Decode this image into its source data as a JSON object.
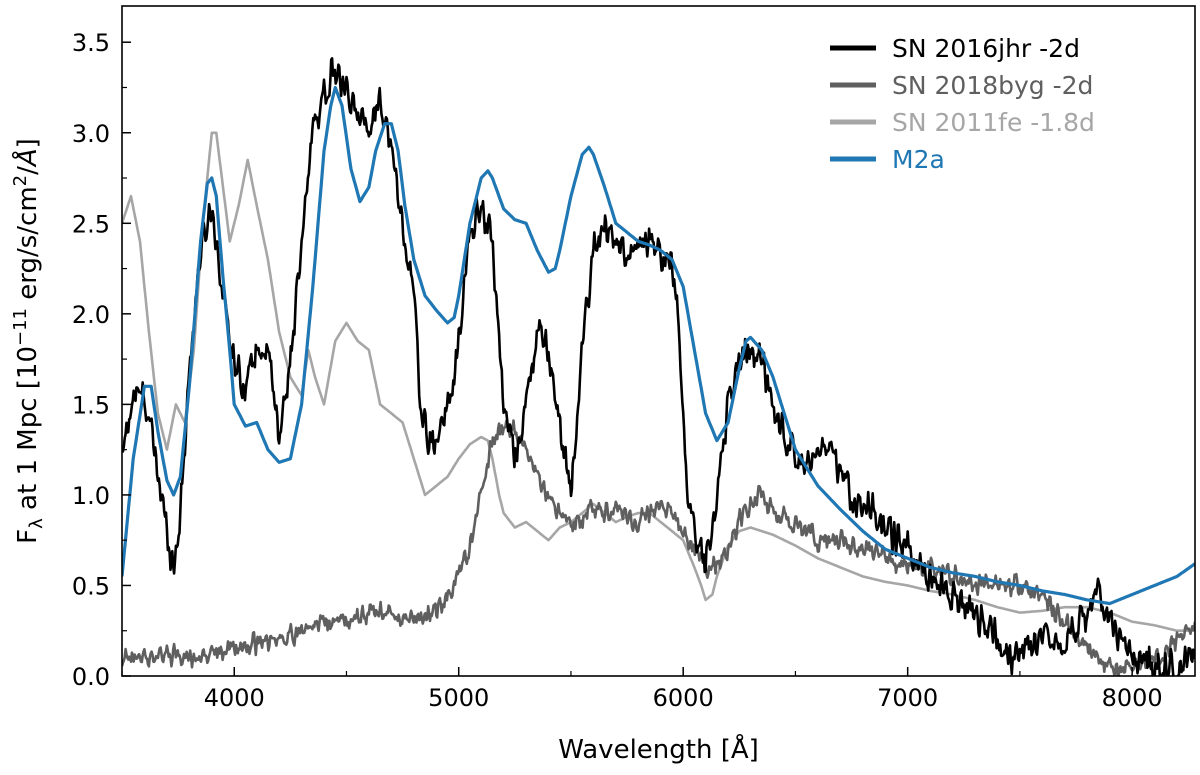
{
  "chart_data": {
    "type": "line",
    "xlabel": "Wavelength [Å]",
    "ylabel_parts": [
      "F",
      "λ",
      " at 1 Mpc [10",
      "−11",
      " erg/s/cm",
      "2",
      "/",
      "Å",
      "]"
    ],
    "xlim": [
      3500,
      8280
    ],
    "ylim": [
      0.0,
      3.7
    ],
    "x_ticks": [
      4000,
      5000,
      6000,
      7000,
      8000
    ],
    "x_tick_labels": [
      "4000",
      "5000",
      "6000",
      "7000",
      "8000"
    ],
    "y_ticks": [
      0.0,
      0.5,
      1.0,
      1.5,
      2.0,
      2.5,
      3.0,
      3.5
    ],
    "y_tick_labels": [
      "0.0",
      "0.5",
      "1.0",
      "1.5",
      "2.0",
      "2.5",
      "3.0",
      "3.5"
    ],
    "grid": false,
    "legend_position": "top-right",
    "series": [
      {
        "name": "SN 2016jhr -2d",
        "color": "#000000",
        "noise": 0.11,
        "x": [
          3500,
          3550,
          3600,
          3650,
          3700,
          3730,
          3760,
          3800,
          3850,
          3900,
          3950,
          4000,
          4050,
          4100,
          4150,
          4200,
          4250,
          4300,
          4350,
          4400,
          4450,
          4500,
          4550,
          4600,
          4650,
          4700,
          4750,
          4800,
          4830,
          4870,
          4900,
          4950,
          4980,
          5050,
          5100,
          5150,
          5200,
          5250,
          5300,
          5350,
          5400,
          5450,
          5500,
          5550,
          5600,
          5650,
          5700,
          5750,
          5800,
          5850,
          5900,
          5950,
          5980,
          6020,
          6050,
          6100,
          6150,
          6200,
          6250,
          6300,
          6350,
          6400,
          6450,
          6500,
          6550,
          6600,
          6650,
          6700,
          6750,
          6800,
          6850,
          6900,
          6950,
          7000,
          7100,
          7200,
          7300,
          7400,
          7450,
          7500,
          7550,
          7600,
          7700,
          7800,
          7850,
          7900,
          8000,
          8100,
          8200,
          8280
        ],
        "y": [
          1.2,
          1.55,
          1.55,
          1.2,
          0.8,
          0.6,
          0.9,
          1.7,
          2.35,
          2.6,
          2.1,
          1.75,
          1.6,
          1.8,
          1.8,
          1.3,
          1.75,
          2.35,
          3.05,
          3.2,
          3.35,
          3.2,
          3.1,
          3.05,
          3.2,
          2.9,
          2.5,
          2.1,
          1.5,
          1.25,
          1.3,
          1.5,
          1.6,
          2.45,
          2.6,
          2.4,
          1.5,
          1.2,
          1.5,
          1.9,
          1.8,
          1.4,
          1.0,
          1.8,
          2.35,
          2.5,
          2.4,
          2.3,
          2.35,
          2.4,
          2.3,
          2.3,
          1.9,
          1.0,
          0.8,
          0.6,
          1.0,
          1.5,
          1.75,
          1.8,
          1.75,
          1.5,
          1.35,
          1.2,
          1.2,
          1.2,
          1.25,
          1.1,
          1.0,
          0.95,
          0.9,
          0.8,
          0.75,
          0.7,
          0.55,
          0.45,
          0.35,
          0.2,
          0.1,
          0.1,
          0.2,
          0.25,
          0.2,
          0.35,
          0.45,
          0.3,
          0.1,
          0.05,
          0.05,
          0.1
        ]
      },
      {
        "name": "SN 2018byg -2d",
        "color": "#5f5f5f",
        "noise": 0.07,
        "x": [
          3500,
          3600,
          3700,
          3800,
          3900,
          4000,
          4100,
          4200,
          4300,
          4400,
          4500,
          4600,
          4700,
          4800,
          4900,
          4950,
          5000,
          5050,
          5100,
          5150,
          5200,
          5250,
          5300,
          5350,
          5400,
          5450,
          5500,
          5550,
          5600,
          5650,
          5700,
          5750,
          5800,
          5900,
          5950,
          6000,
          6050,
          6100,
          6150,
          6200,
          6250,
          6300,
          6350,
          6400,
          6500,
          6600,
          6700,
          6800,
          6900,
          7000,
          7100,
          7200,
          7300,
          7400,
          7500,
          7600,
          7700,
          7800,
          7900,
          8000,
          8100,
          8200,
          8280
        ],
        "y": [
          0.08,
          0.1,
          0.12,
          0.1,
          0.12,
          0.15,
          0.18,
          0.2,
          0.25,
          0.3,
          0.3,
          0.35,
          0.35,
          0.3,
          0.35,
          0.45,
          0.55,
          0.7,
          1.0,
          1.3,
          1.4,
          1.35,
          1.25,
          1.1,
          0.95,
          0.9,
          0.85,
          0.85,
          0.95,
          0.9,
          0.95,
          0.88,
          0.85,
          0.95,
          0.9,
          0.8,
          0.7,
          0.6,
          0.62,
          0.7,
          0.85,
          0.95,
          1.0,
          0.9,
          0.85,
          0.75,
          0.75,
          0.7,
          0.65,
          0.6,
          0.6,
          0.55,
          0.5,
          0.5,
          0.5,
          0.45,
          0.3,
          0.15,
          0.05,
          0.05,
          0.1,
          0.2,
          0.3
        ]
      },
      {
        "name": "SN 2011fe -1.8d",
        "color": "#a6a6a6",
        "noise": 0.0,
        "x": [
          3500,
          3540,
          3580,
          3620,
          3660,
          3700,
          3740,
          3780,
          3820,
          3860,
          3900,
          3920,
          3950,
          3980,
          4020,
          4060,
          4100,
          4150,
          4200,
          4250,
          4300,
          4330,
          4360,
          4400,
          4450,
          4500,
          4550,
          4600,
          4650,
          4700,
          4750,
          4800,
          4850,
          4900,
          4950,
          5000,
          5050,
          5100,
          5130,
          5150,
          5180,
          5200,
          5250,
          5300,
          5350,
          5400,
          5450,
          5500,
          5550,
          5600,
          5650,
          5700,
          5750,
          5800,
          5850,
          5900,
          5950,
          6000,
          6050,
          6080,
          6100,
          6130,
          6150,
          6200,
          6250,
          6300,
          6350,
          6400,
          6500,
          6600,
          6700,
          6800,
          6900,
          7000,
          7100,
          7200,
          7300,
          7400,
          7500,
          7600,
          7700,
          7800,
          7900,
          8000,
          8100,
          8200,
          8280
        ],
        "y": [
          2.5,
          2.65,
          2.4,
          1.9,
          1.45,
          1.25,
          1.5,
          1.4,
          1.8,
          2.5,
          3.0,
          3.0,
          2.7,
          2.4,
          2.6,
          2.85,
          2.6,
          2.3,
          1.9,
          1.65,
          1.55,
          1.8,
          1.65,
          1.5,
          1.85,
          1.95,
          1.85,
          1.8,
          1.5,
          1.45,
          1.4,
          1.2,
          1.0,
          1.05,
          1.1,
          1.2,
          1.28,
          1.32,
          1.3,
          1.2,
          1.0,
          0.9,
          0.82,
          0.85,
          0.8,
          0.75,
          0.82,
          0.85,
          0.9,
          0.95,
          0.9,
          0.85,
          0.88,
          0.9,
          0.9,
          0.85,
          0.8,
          0.75,
          0.6,
          0.5,
          0.42,
          0.45,
          0.55,
          0.72,
          0.8,
          0.82,
          0.8,
          0.78,
          0.72,
          0.65,
          0.6,
          0.55,
          0.52,
          0.5,
          0.47,
          0.45,
          0.42,
          0.38,
          0.35,
          0.36,
          0.38,
          0.38,
          0.35,
          0.3,
          0.28,
          0.25,
          0.25
        ]
      },
      {
        "name": "M2a",
        "color": "#1f77b4",
        "noise": 0.0,
        "x": [
          3500,
          3550,
          3600,
          3630,
          3660,
          3700,
          3730,
          3760,
          3800,
          3850,
          3880,
          3900,
          3920,
          3950,
          3980,
          4000,
          4050,
          4100,
          4150,
          4200,
          4250,
          4300,
          4350,
          4400,
          4430,
          4450,
          4480,
          4520,
          4560,
          4600,
          4630,
          4670,
          4700,
          4730,
          4760,
          4800,
          4850,
          4900,
          4950,
          4980,
          5000,
          5050,
          5100,
          5130,
          5150,
          5200,
          5250,
          5300,
          5350,
          5400,
          5430,
          5450,
          5500,
          5550,
          5580,
          5600,
          5650,
          5700,
          5750,
          5800,
          5850,
          5900,
          5950,
          6000,
          6050,
          6100,
          6150,
          6200,
          6250,
          6280,
          6300,
          6350,
          6400,
          6450,
          6500,
          6600,
          6700,
          6800,
          6900,
          7000,
          7100,
          7200,
          7300,
          7400,
          7500,
          7600,
          7700,
          7800,
          7900,
          8000,
          8100,
          8200,
          8280
        ],
        "y": [
          0.55,
          1.2,
          1.6,
          1.6,
          1.35,
          1.08,
          1.0,
          1.1,
          1.6,
          2.4,
          2.72,
          2.75,
          2.65,
          2.2,
          1.8,
          1.5,
          1.38,
          1.4,
          1.25,
          1.18,
          1.2,
          1.5,
          2.15,
          2.9,
          3.15,
          3.25,
          3.15,
          2.8,
          2.62,
          2.7,
          2.9,
          3.05,
          3.05,
          2.9,
          2.6,
          2.3,
          2.1,
          2.02,
          1.95,
          1.98,
          2.1,
          2.5,
          2.75,
          2.79,
          2.75,
          2.58,
          2.52,
          2.5,
          2.35,
          2.23,
          2.25,
          2.35,
          2.65,
          2.88,
          2.92,
          2.88,
          2.7,
          2.5,
          2.45,
          2.4,
          2.38,
          2.35,
          2.3,
          2.15,
          1.8,
          1.45,
          1.3,
          1.4,
          1.7,
          1.85,
          1.87,
          1.8,
          1.65,
          1.45,
          1.25,
          1.05,
          0.92,
          0.8,
          0.7,
          0.65,
          0.6,
          0.57,
          0.55,
          0.52,
          0.5,
          0.47,
          0.45,
          0.42,
          0.4,
          0.45,
          0.5,
          0.55,
          0.62
        ]
      }
    ]
  }
}
